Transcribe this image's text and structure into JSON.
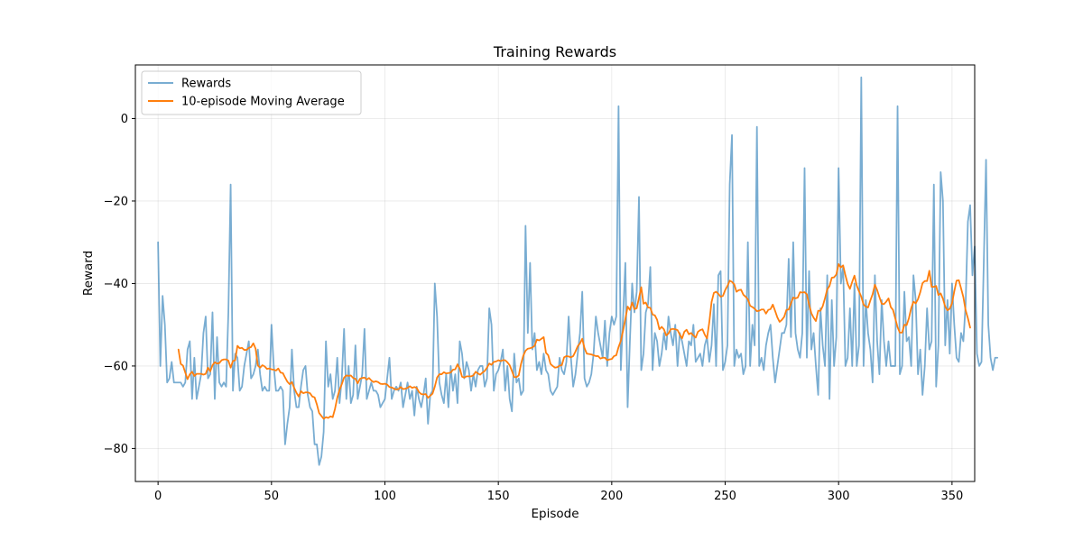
{
  "chart_data": {
    "type": "line",
    "title": "Training Rewards",
    "xlabel": "Episode",
    "ylabel": "Reward",
    "xlim": [
      -10,
      360
    ],
    "ylim": [
      -88,
      13
    ],
    "xticks": [
      0,
      50,
      100,
      150,
      200,
      250,
      300,
      350
    ],
    "yticks": [
      -80,
      -60,
      -40,
      -20,
      0
    ],
    "grid": true,
    "legend_position": "upper left",
    "series": [
      {
        "name": "Rewards",
        "color": "#1f77b4",
        "opacity": 0.6,
        "x_start": 0,
        "values": [
          -30,
          -60,
          -43,
          -50,
          -64,
          -63,
          -59,
          -64,
          -64,
          -64,
          -64,
          -65,
          -64,
          -56,
          -54,
          -68,
          -58,
          -68,
          -65,
          -62,
          -52,
          -48,
          -63,
          -62,
          -47,
          -68,
          -53,
          -64,
          -65,
          -64,
          -65,
          -47,
          -16,
          -66,
          -57,
          -58,
          -66,
          -65,
          -60,
          -57,
          -54,
          -63,
          -62,
          -60,
          -56,
          -62,
          -66,
          -65,
          -66,
          -66,
          -50,
          -60,
          -66,
          -66,
          -65,
          -66,
          -79,
          -74,
          -70,
          -56,
          -66,
          -70,
          -70,
          -65,
          -61,
          -60,
          -67,
          -70,
          -71,
          -79,
          -79,
          -84,
          -82,
          -76,
          -54,
          -65,
          -62,
          -68,
          -66,
          -58,
          -69,
          -63,
          -51,
          -68,
          -60,
          -69,
          -67,
          -55,
          -68,
          -65,
          -62,
          -51,
          -68,
          -66,
          -64,
          -66,
          -66,
          -67,
          -70,
          -69,
          -68,
          -63,
          -58,
          -68,
          -66,
          -65,
          -66,
          -64,
          -70,
          -67,
          -64,
          -68,
          -66,
          -72,
          -65,
          -68,
          -70,
          -67,
          -63,
          -74,
          -67,
          -66,
          -40,
          -48,
          -64,
          -67,
          -69,
          -62,
          -70,
          -60,
          -66,
          -62,
          -69,
          -54,
          -57,
          -63,
          -59,
          -61,
          -66,
          -62,
          -65,
          -61,
          -60,
          -60,
          -65,
          -63,
          -46,
          -50,
          -66,
          -62,
          -61,
          -59,
          -56,
          -66,
          -60,
          -68,
          -71,
          -57,
          -64,
          -63,
          -67,
          -66,
          -26,
          -52,
          -35,
          -56,
          -52,
          -61,
          -59,
          -62,
          -57,
          -61,
          -62,
          -66,
          -67,
          -66,
          -65,
          -58,
          -61,
          -62,
          -59,
          -48,
          -58,
          -65,
          -62,
          -57,
          -52,
          -42,
          -63,
          -65,
          -64,
          -62,
          -57,
          -48,
          -52,
          -55,
          -58,
          -49,
          -60,
          -52,
          -48,
          -50,
          -48,
          3,
          -61,
          -48,
          -35,
          -70,
          -54,
          -40,
          -47,
          -42,
          -19,
          -61,
          -57,
          -47,
          -45,
          -36,
          -61,
          -52,
          -54,
          -60,
          -57,
          -52,
          -56,
          -48,
          -52,
          -55,
          -50,
          -60,
          -52,
          -54,
          -57,
          -60,
          -54,
          -55,
          -50,
          -59,
          -58,
          -57,
          -60,
          -55,
          -53,
          -59,
          -55,
          -45,
          -60,
          -38,
          -37,
          -61,
          -59,
          -55,
          -16,
          -4,
          -60,
          -56,
          -58,
          -57,
          -62,
          -60,
          -30,
          -60,
          -50,
          -55,
          -2,
          -60,
          -58,
          -61,
          -55,
          -52,
          -50,
          -58,
          -64,
          -60,
          -56,
          -52,
          -52,
          -50,
          -34,
          -53,
          -30,
          -52,
          -56,
          -58,
          -52,
          -12,
          -58,
          -37,
          -56,
          -52,
          -60,
          -67,
          -46,
          -55,
          -60,
          -38,
          -68,
          -44,
          -60,
          -53,
          -12,
          -40,
          -36,
          -60,
          -58,
          -46,
          -60,
          -40,
          -60,
          -55,
          10,
          -60,
          -44,
          -52,
          -56,
          -64,
          -38,
          -54,
          -62,
          -44,
          -54,
          -60,
          -54,
          -60,
          -60,
          -60,
          3,
          -62,
          -60,
          -42,
          -54,
          -53,
          -60,
          -38,
          -44,
          -62,
          -56,
          -67,
          -60,
          -46,
          -56,
          -54,
          -16,
          -65,
          -55,
          -13,
          -20,
          -55,
          -44,
          -57,
          -40,
          -50,
          -58,
          -59,
          -52,
          -54,
          -45,
          -25,
          -21,
          -38,
          -31,
          -57,
          -60,
          -59,
          -35,
          -10,
          -50,
          -58,
          -61,
          -58,
          -58
        ]
      },
      {
        "name": "10-episode Moving Average",
        "color": "#ff7f0e",
        "opacity": 1.0,
        "x_start": 9,
        "values": [
          -56,
          -59.5,
          -59.9,
          -61.6,
          -63.2,
          -62,
          -61.4,
          -62.4,
          -61.9,
          -61.9,
          -61.9,
          -62.1,
          -61.9,
          -60.4,
          -61.3,
          -59.8,
          -59.1,
          -59.4,
          -59.3,
          -58.6,
          -58.4,
          -58.4,
          -58.7,
          -60.4,
          -58.8,
          -58.6,
          -55.1,
          -55.7,
          -55.6,
          -56.1,
          -56.1,
          -55.6,
          -55.4,
          -54.5,
          -55.8,
          -59.9,
          -60.4,
          -59.8,
          -60.1,
          -60.7,
          -60.6,
          -60.8,
          -60.9,
          -61.1,
          -60.6,
          -61.6,
          -61.7,
          -62.8,
          -63.8,
          -64.4,
          -63.9,
          -65.3,
          -66.5,
          -67.4,
          -66.1,
          -66.6,
          -66.4,
          -66.4,
          -66.6,
          -67.4,
          -67.6,
          -69.3,
          -71.4,
          -72.1,
          -72.8,
          -72.4,
          -72.6,
          -72.2,
          -72.4,
          -70.4,
          -67.7,
          -65.8,
          -64.4,
          -62.8,
          -62.3,
          -62.4,
          -62.3,
          -62.9,
          -63.1,
          -64.2,
          -63.1,
          -62.9,
          -62.8,
          -63.3,
          -62.9,
          -63.5,
          -63.9,
          -63.7,
          -63.9,
          -64.3,
          -64.4,
          -64.3,
          -64.5,
          -65.1,
          -65.2,
          -65.5,
          -65.7,
          -65.6,
          -65.1,
          -65.6,
          -65.5,
          -65.3,
          -64.9,
          -65.3,
          -65.1,
          -65.3,
          -66.3,
          -66.8,
          -66.9,
          -66.8,
          -67.7,
          -67.2,
          -66.7,
          -65,
          -62.8,
          -62,
          -62,
          -61.5,
          -61.8,
          -61.7,
          -61.6,
          -60.9,
          -60.8,
          -59.6,
          -60.6,
          -62.6,
          -62.8,
          -62.5,
          -62.5,
          -62.5,
          -62.3,
          -61.4,
          -61.8,
          -62.1,
          -61.6,
          -61.2,
          -60.4,
          -59.4,
          -59.7,
          -59,
          -58.9,
          -58.6,
          -58.8,
          -58.6,
          -58.6,
          -59.1,
          -59.8,
          -61.2,
          -62.7,
          -62.7,
          -62.3,
          -59.5,
          -57.5,
          -56.3,
          -55.8,
          -55.7,
          -55.5,
          -55.1,
          -53.6,
          -53.8,
          -53.4,
          -53,
          -56.8,
          -57.4,
          -59.5,
          -60,
          -60.4,
          -60.3,
          -59.9,
          -59.8,
          -57.9,
          -57.6,
          -57.7,
          -57.9,
          -57.6,
          -56.5,
          -55.2,
          -54.5,
          -53.4,
          -55.7,
          -57,
          -57.1,
          -57.2,
          -57.4,
          -57.6,
          -57.6,
          -58.2,
          -58,
          -58,
          -58.6,
          -58.4,
          -58.3,
          -57.6,
          -57.4,
          -55.4,
          -53.9,
          -51.4,
          -48.6,
          -45.6,
          -46.4,
          -44.6,
          -46.2,
          -46,
          -43.5,
          -40.9,
          -44.9,
          -44.6,
          -45.8,
          -45.9,
          -47.5,
          -47.7,
          -48.8,
          -51.1,
          -50.5,
          -51.1,
          -52.6,
          -52.1,
          -51.1,
          -51,
          -51.1,
          -51.3,
          -52.4,
          -53.3,
          -51.7,
          -51.2,
          -52.3,
          -52,
          -52.6,
          -53.1,
          -51.7,
          -51.3,
          -51.1,
          -52.4,
          -53.3,
          -49.4,
          -44.5,
          -42.3,
          -42,
          -42.5,
          -43.2,
          -43,
          -41.6,
          -40.6,
          -39.3,
          -39.6,
          -40.2,
          -42,
          -41.6,
          -41.5,
          -42.7,
          -43.2,
          -43.8,
          -45.4,
          -45.7,
          -46.1,
          -46.7,
          -46.6,
          -46.3,
          -46.3,
          -47.3,
          -46.4,
          -46.2,
          -45.1,
          -46.6,
          -48.2,
          -49.3,
          -48.8,
          -48.1,
          -46.4,
          -46.3,
          -44.8,
          -43.4,
          -43.6,
          -43.4,
          -42.1,
          -42.2,
          -42.1,
          -42.6,
          -45.1,
          -47.2,
          -48.3,
          -49.1,
          -46.6,
          -46.6,
          -45.5,
          -43.6,
          -41.4,
          -40.6,
          -38.6,
          -38.5,
          -37.8,
          -35.3,
          -36.1,
          -35.6,
          -38,
          -40.1,
          -41.3,
          -39.6,
          -38.1,
          -40.5,
          -41.9,
          -43.2,
          -45.1,
          -45.6,
          -45.8,
          -44.1,
          -42.6,
          -40.3,
          -41.6,
          -43.3,
          -44.9,
          -45,
          -44.4,
          -43.6,
          -45.7,
          -46.4,
          -48.5,
          -50.6,
          -51.9,
          -51.9,
          -50,
          -50.1,
          -48.4,
          -46,
          -44.4,
          -44.8,
          -43.8,
          -42.1,
          -39.9,
          -39.4,
          -39.4,
          -36.9,
          -40.8,
          -40.8,
          -40.6,
          -42.8,
          -42.4,
          -43.7,
          -45.6,
          -46.5,
          -46.1,
          -44.8,
          -41.9,
          -39.3,
          -39.2,
          -41.2,
          -43.3,
          -46.5,
          -48.4,
          -50.7
        ]
      }
    ]
  }
}
